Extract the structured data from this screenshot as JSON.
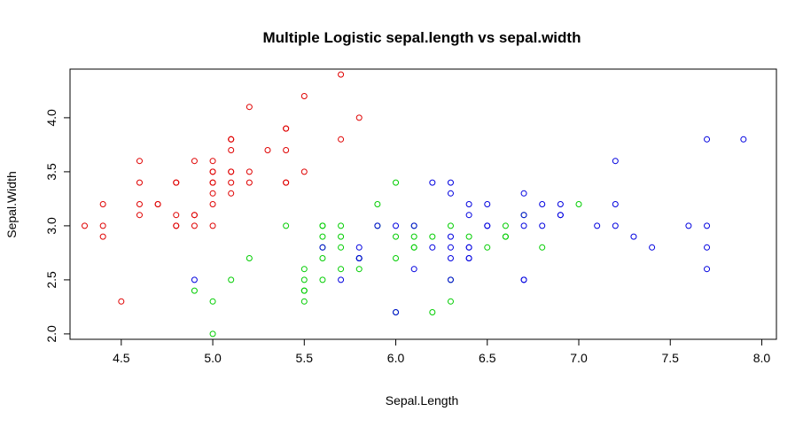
{
  "chart_data": {
    "type": "scatter",
    "title": "Multiple Logistic sepal.length vs sepal.width",
    "xlabel": "Sepal.Length",
    "ylabel": "Sepal.Width",
    "xlim": [
      4.22,
      8.08
    ],
    "ylim": [
      1.95,
      4.45
    ],
    "x_ticks": [
      "4.5",
      "5.0",
      "5.5",
      "6.0",
      "6.5",
      "7.0",
      "7.5",
      "8.0"
    ],
    "y_ticks": [
      "2.0",
      "2.5",
      "3.0",
      "3.5",
      "4.0"
    ],
    "grid": false,
    "legend": "none",
    "series": [
      {
        "color": "#df0000",
        "points": [
          [
            5.1,
            3.5
          ],
          [
            4.9,
            3.0
          ],
          [
            4.7,
            3.2
          ],
          [
            4.6,
            3.1
          ],
          [
            5.0,
            3.6
          ],
          [
            5.4,
            3.9
          ],
          [
            4.6,
            3.4
          ],
          [
            5.0,
            3.4
          ],
          [
            4.4,
            2.9
          ],
          [
            4.9,
            3.1
          ],
          [
            5.4,
            3.7
          ],
          [
            4.8,
            3.4
          ],
          [
            4.8,
            3.0
          ],
          [
            4.3,
            3.0
          ],
          [
            5.8,
            4.0
          ],
          [
            5.7,
            4.4
          ],
          [
            5.4,
            3.9
          ],
          [
            5.1,
            3.5
          ],
          [
            5.7,
            3.8
          ],
          [
            5.1,
            3.8
          ],
          [
            5.4,
            3.4
          ],
          [
            5.1,
            3.7
          ],
          [
            4.6,
            3.6
          ],
          [
            5.1,
            3.3
          ],
          [
            4.8,
            3.4
          ],
          [
            5.0,
            3.0
          ],
          [
            5.0,
            3.4
          ],
          [
            5.2,
            3.5
          ],
          [
            5.2,
            3.4
          ],
          [
            4.7,
            3.2
          ],
          [
            4.8,
            3.1
          ],
          [
            5.4,
            3.4
          ],
          [
            5.2,
            4.1
          ],
          [
            5.5,
            4.2
          ],
          [
            4.9,
            3.1
          ],
          [
            5.0,
            3.2
          ],
          [
            5.5,
            3.5
          ],
          [
            4.9,
            3.6
          ],
          [
            4.4,
            3.0
          ],
          [
            5.1,
            3.4
          ],
          [
            5.0,
            3.5
          ],
          [
            4.5,
            2.3
          ],
          [
            4.4,
            3.2
          ],
          [
            5.0,
            3.5
          ],
          [
            5.1,
            3.8
          ],
          [
            4.8,
            3.0
          ],
          [
            5.1,
            3.8
          ],
          [
            4.6,
            3.2
          ],
          [
            5.3,
            3.7
          ],
          [
            5.0,
            3.3
          ]
        ]
      },
      {
        "color": "#00cd00",
        "points": [
          [
            7.0,
            3.2
          ],
          [
            6.6,
            2.9
          ],
          [
            5.2,
            2.7
          ],
          [
            5.0,
            2.0
          ],
          [
            5.9,
            3.0
          ],
          [
            6.0,
            2.2
          ],
          [
            6.1,
            2.9
          ],
          [
            5.6,
            2.9
          ],
          [
            6.7,
            3.1
          ],
          [
            5.6,
            3.0
          ],
          [
            5.8,
            2.7
          ],
          [
            6.2,
            2.2
          ],
          [
            5.6,
            2.5
          ],
          [
            5.9,
            3.2
          ],
          [
            6.1,
            2.8
          ],
          [
            6.3,
            2.5
          ],
          [
            6.1,
            2.8
          ],
          [
            6.6,
            3.0
          ],
          [
            6.8,
            2.8
          ],
          [
            6.0,
            2.9
          ],
          [
            5.7,
            2.6
          ],
          [
            5.5,
            2.4
          ],
          [
            5.5,
            2.4
          ],
          [
            5.8,
            2.7
          ],
          [
            5.4,
            3.0
          ],
          [
            6.0,
            3.4
          ],
          [
            6.3,
            2.3
          ],
          [
            5.6,
            3.0
          ],
          [
            5.5,
            2.5
          ],
          [
            5.5,
            2.6
          ],
          [
            6.1,
            3.0
          ],
          [
            5.8,
            2.6
          ],
          [
            5.0,
            2.3
          ],
          [
            5.6,
            2.7
          ],
          [
            5.7,
            3.0
          ],
          [
            5.7,
            2.9
          ],
          [
            6.2,
            2.9
          ],
          [
            5.1,
            2.5
          ],
          [
            5.7,
            2.8
          ],
          [
            4.9,
            2.4
          ],
          [
            6.0,
            2.7
          ],
          [
            6.5,
            2.8
          ],
          [
            6.4,
            2.9
          ],
          [
            5.5,
            2.3
          ],
          [
            6.6,
            2.9
          ],
          [
            5.6,
            2.8
          ],
          [
            6.3,
            3.0
          ]
        ]
      },
      {
        "color": "#0000df",
        "points": [
          [
            6.3,
            3.3
          ],
          [
            5.8,
            2.7
          ],
          [
            7.1,
            3.0
          ],
          [
            6.3,
            2.9
          ],
          [
            6.5,
            3.0
          ],
          [
            7.6,
            3.0
          ],
          [
            4.9,
            2.5
          ],
          [
            7.3,
            2.9
          ],
          [
            6.7,
            2.5
          ],
          [
            7.2,
            3.6
          ],
          [
            6.5,
            3.2
          ],
          [
            6.4,
            2.7
          ],
          [
            6.8,
            3.0
          ],
          [
            5.7,
            2.5
          ],
          [
            5.8,
            2.8
          ],
          [
            6.4,
            3.2
          ],
          [
            7.7,
            3.8
          ],
          [
            7.7,
            2.6
          ],
          [
            6.0,
            2.2
          ],
          [
            6.9,
            3.2
          ],
          [
            5.6,
            2.8
          ],
          [
            7.7,
            2.8
          ],
          [
            6.3,
            2.7
          ],
          [
            6.7,
            3.3
          ],
          [
            7.2,
            3.2
          ],
          [
            6.2,
            2.8
          ],
          [
            6.1,
            3.0
          ],
          [
            6.4,
            2.8
          ],
          [
            7.2,
            3.0
          ],
          [
            7.4,
            2.8
          ],
          [
            7.9,
            3.8
          ],
          [
            6.4,
            2.8
          ],
          [
            6.3,
            2.8
          ],
          [
            6.1,
            2.6
          ],
          [
            7.7,
            3.0
          ],
          [
            6.3,
            3.4
          ],
          [
            6.4,
            3.1
          ],
          [
            6.0,
            3.0
          ],
          [
            6.9,
            3.1
          ],
          [
            6.7,
            3.1
          ],
          [
            5.8,
            2.7
          ],
          [
            6.8,
            3.2
          ],
          [
            6.7,
            3.0
          ],
          [
            6.3,
            2.5
          ],
          [
            6.5,
            3.0
          ],
          [
            6.2,
            3.4
          ],
          [
            5.9,
            3.0
          ],
          [
            6.4,
            2.7
          ],
          [
            6.7,
            2.5
          ],
          [
            6.9,
            3.1
          ]
        ]
      }
    ]
  }
}
